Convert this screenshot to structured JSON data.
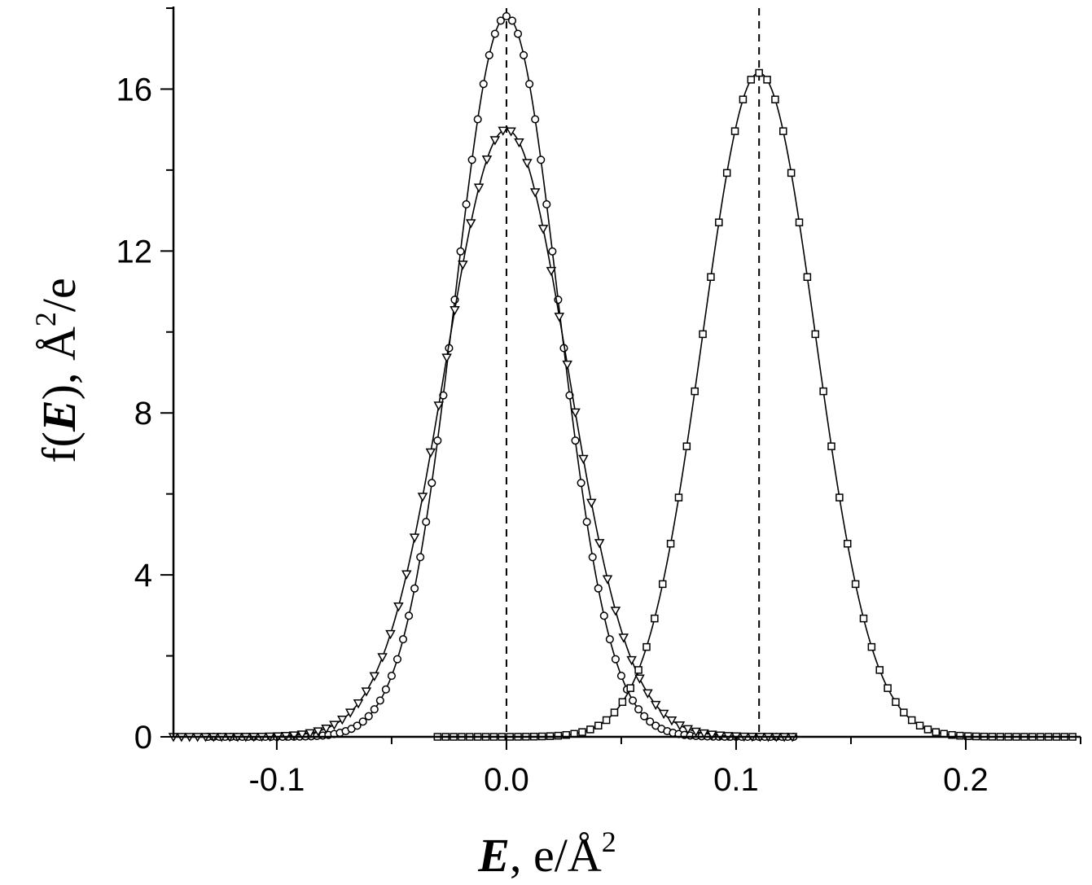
{
  "chart_data": {
    "type": "line",
    "xlabel": {
      "italic": "E",
      "rest": ", e/Å",
      "sup": "2"
    },
    "ylabel": {
      "prefix": "f(",
      "italic": "E",
      "rest": "), Å",
      "sup": "2",
      "tail": "/e"
    },
    "xlim": [
      -0.145,
      0.25
    ],
    "ylim": [
      0,
      18
    ],
    "x_ticks": [
      -0.1,
      0.0,
      0.1,
      0.2
    ],
    "x_tick_labels": [
      "-0.1",
      "0.0",
      "0.1",
      "0.2"
    ],
    "y_ticks": [
      0,
      4,
      8,
      12,
      16
    ],
    "y_tick_labels": [
      "0",
      "4",
      "8",
      "12",
      "16"
    ],
    "reference_lines_x": [
      0.0,
      0.11
    ],
    "series": [
      {
        "marker": "circle",
        "center": 0.0,
        "peak": 17.8,
        "sigma": 0.0225,
        "x_range": [
          -0.13,
          0.125
        ],
        "step": 0.0025
      },
      {
        "marker": "triangle-down",
        "center": 0.0,
        "peak": 15.0,
        "sigma": 0.0268,
        "x_range": [
          -0.145,
          0.125
        ],
        "step": 0.0035
      },
      {
        "marker": "square",
        "center": 0.11,
        "peak": 16.4,
        "sigma": 0.0245,
        "x_range": [
          -0.03,
          0.245
        ],
        "step": 0.0035
      }
    ],
    "grid": false,
    "legend": "none"
  }
}
